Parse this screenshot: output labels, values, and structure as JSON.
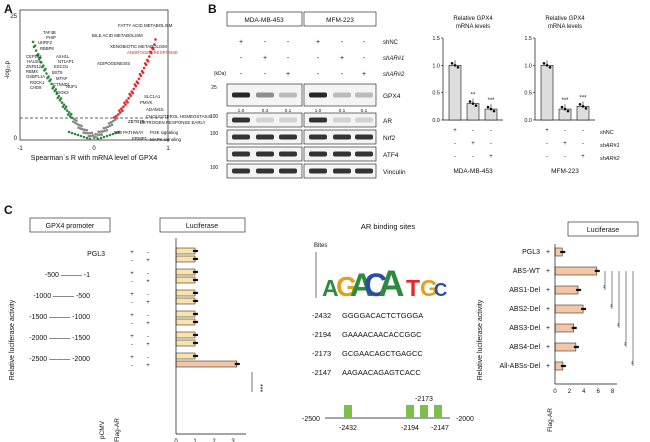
{
  "panelA": {
    "letter": "A",
    "ylabel": "-log₁₀p",
    "xlabel": "Spearman`s R with mRNA level of GPX4",
    "xticks": [
      "-1",
      "0",
      "1"
    ],
    "yticks": [
      "25",
      "0"
    ],
    "pathways_right": [
      "FATTY ACID METABOLISM",
      "BILE ACID METABOLISM",
      "XENOBIOTIC METABOLISM",
      "ANDROGEN RESPONSE",
      "ADIPOGENESIS",
      "SLC1A1",
      "PMVK",
      "ADAM15",
      "CHOLESTEROL HOMEOSTASIS",
      "ESTROGEN RESPONSE EARLY",
      "ZBTB7B",
      "P53 PATHWAY",
      "PI3K signaling",
      "ERMP1",
      "MAPK signaling"
    ],
    "genes_left": [
      "TAF4B",
      "PHIP",
      "UHRF2",
      "RBBP8",
      "CEP192",
      "HAUS6",
      "ZNF512",
      "RBMX",
      "OSBPL1A",
      "ROCK1",
      "CHD8",
      "ASH1L",
      "NT1AP1",
      "ESCO1",
      "BST8",
      "MTAP",
      "CTNND1",
      "RIOK3",
      "NUP1"
    ],
    "highlight_color": "#e8262b"
  },
  "panelB": {
    "letter": "B",
    "cell_lines": [
      "MDA-MB-453",
      "MFM-223"
    ],
    "treatments": [
      "shNC",
      "shAR#1",
      "shAR#2"
    ],
    "kda_label": "(kDa)",
    "blots": [
      {
        "name": "GPX4",
        "kda": "25",
        "quant": [
          "1.0",
          "0.3",
          "0.1",
          "1.0",
          "0.1",
          "0.1"
        ]
      },
      {
        "name": "AR",
        "kda": "100",
        "quant": []
      },
      {
        "name": "Nrf2",
        "kda": "100",
        "quant": []
      },
      {
        "name": "ATF4",
        "kda": "",
        "quant": []
      },
      {
        "name": "Vinculin",
        "kda": "100",
        "quant": []
      }
    ],
    "charts": [
      {
        "title": "Relative GPX4 mRNA levels",
        "cell": "MDA-MB-453",
        "yticks": [
          "0.0",
          "0.5",
          "1.0",
          "1.5"
        ],
        "stars": [
          "",
          "**",
          "***"
        ]
      },
      {
        "title": "Relative GPX4 mRNA levels",
        "cell": "MFM-223",
        "yticks": [
          "0.0",
          "0.5",
          "1.0",
          "1.5"
        ],
        "stars": [
          "",
          "***",
          "***"
        ]
      }
    ]
  },
  "panelC": {
    "letter": "C",
    "promoter_header": "GPX4 promoter",
    "luciferase_header": "Luciferase",
    "ylabel": "Relative luciferase activity",
    "constructs": [
      "PGL3",
      "-500 ——— -1",
      "-1000 ——— -500",
      "-1500 ——— -1000",
      "-2000 ——— -1500",
      "-2500 ——— -2000"
    ],
    "row_labels": [
      "pCMV",
      "Flag-AR"
    ],
    "xticks": [
      "0",
      "1",
      "2",
      "3"
    ],
    "sig": "***",
    "ar_title": "AR binding sites",
    "bits_label": "Bites",
    "sites": [
      {
        "pos": "-2432",
        "seq": "GGGGACACTCTGGGA"
      },
      {
        "pos": "-2194",
        "seq": "GAAAACAACACCGGC"
      },
      {
        "pos": "-2173",
        "seq": "GCGAACAGCTGAGCC"
      },
      {
        "pos": "-2147",
        "seq": "AAGAACAGAGTCACC"
      }
    ],
    "promoter_map": {
      "left": "-2500",
      "right": "-2000",
      "marks": [
        "-2432",
        "-2194",
        "-2173",
        "-2147"
      ]
    },
    "abs_header": "Luciferase",
    "abs_constructs": [
      "PGL3",
      "ABS-WT",
      "ABS1-Del",
      "ABS2-Del",
      "ABS3-Del",
      "ABS4-Del",
      "All-ABSs-Del"
    ],
    "abs_xticks": [
      "0",
      "2",
      "4",
      "6",
      "8"
    ],
    "abs_xlabel": "Flag-AR",
    "bar_color": "#f4c6a6",
    "bar_color_left": "#f9e3a8"
  },
  "chart_data": [
    {
      "type": "bar",
      "title": "Relative GPX4 mRNA levels",
      "categories": [
        "shNC",
        "shAR#1",
        "shAR#2"
      ],
      "series": [
        {
          "name": "MDA-MB-453",
          "values": [
            1.0,
            0.3,
            0.2
          ]
        }
      ],
      "ylim": [
        0,
        1.5
      ]
    },
    {
      "type": "bar",
      "title": "Relative GPX4 mRNA levels",
      "categories": [
        "shNC",
        "shAR#1",
        "shAR#2"
      ],
      "series": [
        {
          "name": "MFM-223",
          "values": [
            1.0,
            0.2,
            0.25
          ]
        }
      ],
      "ylim": [
        0,
        1.5
      ]
    },
    {
      "type": "bar",
      "title": "Luciferase",
      "categories": [
        "PGL3 pCMV",
        "PGL3 Flag-AR",
        "-500~-1 pCMV",
        "-500~-1 Flag-AR",
        "-1000~-500 pCMV",
        "-1000~-500 Flag-AR",
        "-1500~-1000 pCMV",
        "-1500~-1000 Flag-AR",
        "-2000~-1500 pCMV",
        "-2000~-1500 Flag-AR",
        "-2500~-2000 pCMV",
        "-2500~-2000 Flag-AR"
      ],
      "values": [
        1.0,
        1.0,
        1.0,
        1.0,
        1.0,
        1.0,
        1.0,
        1.0,
        1.0,
        1.0,
        1.0,
        3.2
      ],
      "xlim": [
        0,
        3.5
      ]
    },
    {
      "type": "bar",
      "title": "Luciferase",
      "categories": [
        "PGL3",
        "ABS-WT",
        "ABS1-Del",
        "ABS2-Del",
        "ABS3-Del",
        "ABS4-Del",
        "All-ABSs-Del"
      ],
      "values": [
        1.0,
        5.8,
        3.2,
        3.9,
        2.6,
        2.9,
        1.1
      ],
      "xlim": [
        0,
        8
      ]
    }
  ]
}
